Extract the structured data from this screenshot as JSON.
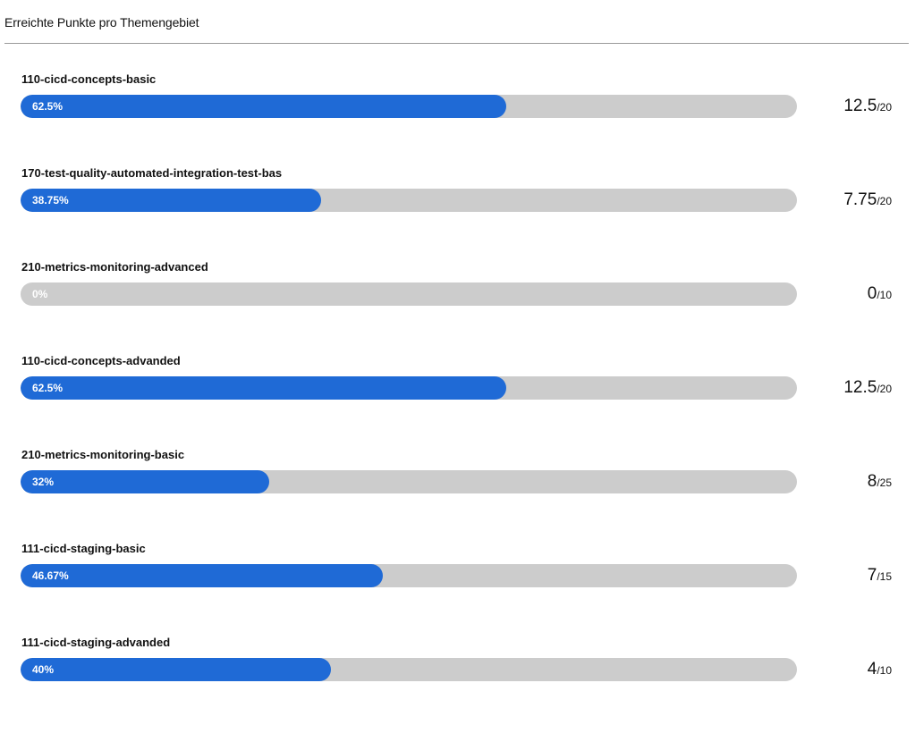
{
  "header": {
    "title": "Erreichte Punkte pro Themengebiet"
  },
  "colors": {
    "fill": "#1f6ad6",
    "track": "#cccccc",
    "divider": "#9a9a9a"
  },
  "topics": [
    {
      "name": "110-cicd-concepts-basic",
      "percent_label": "62.5%",
      "percent": 62.5,
      "score": "12.5",
      "max": "/20"
    },
    {
      "name": "170-test-quality-automated-integration-test-bas",
      "percent_label": "38.75%",
      "percent": 38.75,
      "score": "7.75",
      "max": "/20"
    },
    {
      "name": "210-metrics-monitoring-advanced",
      "percent_label": "0%",
      "percent": 0,
      "score": "0",
      "max": "/10"
    },
    {
      "name": "110-cicd-concepts-advanded",
      "percent_label": "62.5%",
      "percent": 62.5,
      "score": "12.5",
      "max": "/20"
    },
    {
      "name": "210-metrics-monitoring-basic",
      "percent_label": "32%",
      "percent": 32,
      "score": "8",
      "max": "/25"
    },
    {
      "name": "111-cicd-staging-basic",
      "percent_label": "46.67%",
      "percent": 46.67,
      "score": "7",
      "max": "/15"
    },
    {
      "name": "111-cicd-staging-advanded",
      "percent_label": "40%",
      "percent": 40,
      "score": "4",
      "max": "/10"
    }
  ]
}
